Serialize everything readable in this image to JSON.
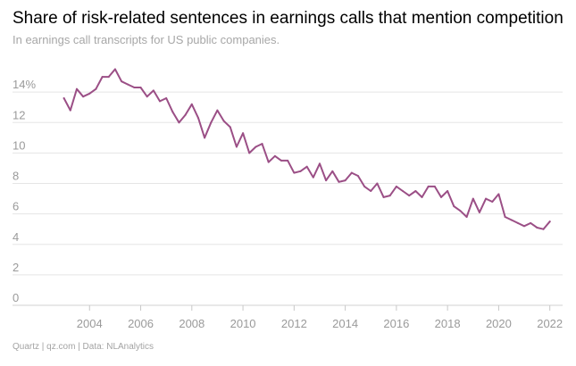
{
  "title": "Share of risk-related sentences in earnings calls that mention competition",
  "subtitle": "In earnings call transcripts for US public companies.",
  "source": "Quartz | qz.com | Data: NLAnalytics",
  "colors": {
    "line": "#9b4f86",
    "grid": "#e5e5e5",
    "text": "#9a9a9a"
  },
  "chart_data": {
    "type": "line",
    "title": "Share of risk-related sentences in earnings calls that mention competition",
    "subtitle": "In earnings call transcripts for US public companies.",
    "xlabel": "",
    "ylabel": "",
    "ylim": [
      0,
      16
    ],
    "xlim": [
      2002.0,
      2022.5
    ],
    "grid": true,
    "y_ticks": [
      {
        "value": 0,
        "label": "0"
      },
      {
        "value": 2,
        "label": "2"
      },
      {
        "value": 4,
        "label": "4"
      },
      {
        "value": 6,
        "label": "6"
      },
      {
        "value": 8,
        "label": "8"
      },
      {
        "value": 10,
        "label": "10"
      },
      {
        "value": 12,
        "label": "12"
      },
      {
        "value": 14,
        "label": "14%"
      }
    ],
    "x_ticks": [
      {
        "value": 2004,
        "label": "2004"
      },
      {
        "value": 2006,
        "label": "2006"
      },
      {
        "value": 2008,
        "label": "2008"
      },
      {
        "value": 2010,
        "label": "2010"
      },
      {
        "value": 2012,
        "label": "2012"
      },
      {
        "value": 2014,
        "label": "2014"
      },
      {
        "value": 2016,
        "label": "2016"
      },
      {
        "value": 2018,
        "label": "2018"
      },
      {
        "value": 2020,
        "label": "2020"
      },
      {
        "value": 2022,
        "label": "2022"
      }
    ],
    "series": [
      {
        "x": [
          2003.0,
          2003.25,
          2003.5,
          2003.75,
          2004.0,
          2004.25,
          2004.5,
          2004.75,
          2005.0,
          2005.25,
          2005.5,
          2005.75,
          2006.0,
          2006.25,
          2006.5,
          2006.75,
          2007.0,
          2007.25,
          2007.5,
          2007.75,
          2008.0,
          2008.25,
          2008.5,
          2008.75,
          2009.0,
          2009.25,
          2009.5,
          2009.75,
          2010.0,
          2010.25,
          2010.5,
          2010.75,
          2011.0,
          2011.25,
          2011.5,
          2011.75,
          2012.0,
          2012.25,
          2012.5,
          2012.75,
          2013.0,
          2013.25,
          2013.5,
          2013.75,
          2014.0,
          2014.25,
          2014.5,
          2014.75,
          2015.0,
          2015.25,
          2015.5,
          2015.75,
          2016.0,
          2016.25,
          2016.5,
          2016.75,
          2017.0,
          2017.25,
          2017.5,
          2017.75,
          2018.0,
          2018.25,
          2018.5,
          2018.75,
          2019.0,
          2019.25,
          2019.5,
          2019.75,
          2020.0,
          2020.25,
          2020.5,
          2020.75,
          2021.0,
          2021.25,
          2021.5,
          2021.75,
          2022.0
        ],
        "values": [
          13.6,
          12.8,
          14.2,
          13.7,
          13.9,
          14.2,
          15.0,
          15.0,
          15.5,
          14.7,
          14.5,
          14.3,
          14.3,
          13.7,
          14.1,
          13.4,
          13.6,
          12.7,
          12.0,
          12.5,
          13.2,
          12.3,
          11.0,
          12.0,
          12.8,
          12.1,
          11.7,
          10.4,
          11.3,
          10.0,
          10.4,
          10.6,
          9.4,
          9.8,
          9.5,
          9.5,
          8.7,
          8.8,
          9.1,
          8.4,
          9.3,
          8.2,
          8.8,
          8.1,
          8.2,
          8.7,
          8.5,
          7.8,
          7.5,
          8.0,
          7.1,
          7.2,
          7.8,
          7.5,
          7.2,
          7.5,
          7.1,
          7.8,
          7.8,
          7.1,
          7.5,
          6.5,
          6.2,
          5.8,
          7.0,
          6.1,
          7.0,
          6.8,
          7.3,
          5.8,
          5.6,
          5.4,
          5.2,
          5.4,
          5.1,
          5.0,
          5.5
        ]
      }
    ]
  }
}
